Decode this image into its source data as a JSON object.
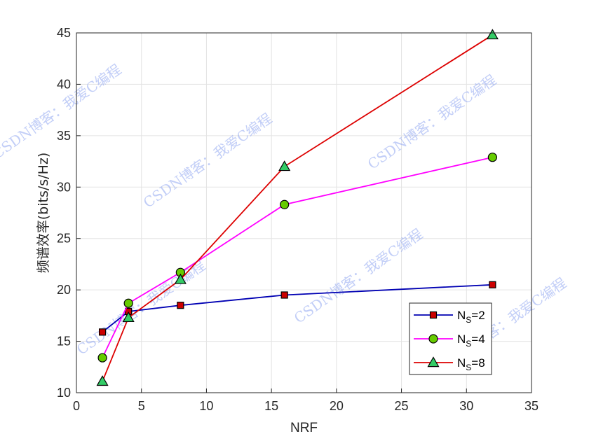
{
  "chart_data": {
    "type": "line",
    "xlabel": "NRF",
    "ylabel": "频谱效率(bits/s/Hz)",
    "xlim": [
      0,
      35
    ],
    "ylim": [
      10,
      45
    ],
    "xticks": [
      0,
      5,
      10,
      15,
      20,
      25,
      30,
      35
    ],
    "yticks": [
      10,
      15,
      20,
      25,
      30,
      35,
      40,
      45
    ],
    "grid": true,
    "legend_position": "bottom-right",
    "x": [
      2,
      4,
      8,
      16,
      32
    ],
    "series": [
      {
        "name_main": "N",
        "name_sub": "S",
        "name_suffix": "=2",
        "color": "#0000b3",
        "marker": "square",
        "marker_fill": "#cc0000",
        "values": [
          15.9,
          17.9,
          18.5,
          19.5,
          20.5
        ]
      },
      {
        "name_main": "N",
        "name_sub": "S",
        "name_suffix": "=4",
        "color": "#ff00ff",
        "marker": "circle",
        "marker_fill": "#66cc00",
        "values": [
          13.4,
          18.7,
          21.7,
          28.3,
          32.9
        ]
      },
      {
        "name_main": "N",
        "name_sub": "S",
        "name_suffix": "=8",
        "color": "#dd0000",
        "marker": "triangle",
        "marker_fill": "#33cc66",
        "values": [
          11.1,
          17.3,
          21.0,
          32.0,
          44.8
        ]
      }
    ]
  },
  "watermark": {
    "text": "CSDN博客：我爱C编程"
  }
}
